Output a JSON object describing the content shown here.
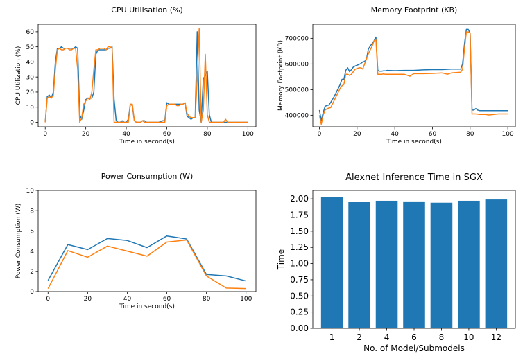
{
  "chart_data": [
    {
      "type": "line",
      "title": "CPU Utilisation (%)",
      "xlabel": "Time in second(s)",
      "ylabel": "CPU Utilization (%)",
      "xlim": [
        -3.5,
        104
      ],
      "ylim": [
        -3,
        65
      ],
      "xticks": [
        0,
        20,
        40,
        60,
        80,
        100
      ],
      "yticks": [
        0,
        10,
        20,
        30,
        40,
        50,
        60
      ],
      "series": [
        {
          "color": "#1f77b4",
          "x": [
            0,
            1,
            2,
            3,
            4,
            5,
            6,
            7,
            8,
            9,
            10,
            11,
            12,
            13,
            14,
            15,
            16,
            17,
            18,
            19,
            20,
            21,
            22,
            23,
            24,
            25,
            26,
            27,
            28,
            29,
            30,
            31,
            32,
            33,
            34,
            35,
            36,
            37,
            38,
            39,
            40,
            41,
            42,
            43,
            44,
            45,
            46,
            47,
            48,
            49,
            50,
            52,
            54,
            56,
            58,
            59,
            60,
            61,
            62,
            63,
            64,
            65,
            66,
            67,
            68,
            69,
            70,
            71,
            72,
            73,
            74,
            75,
            76,
            77,
            78,
            79,
            80,
            81,
            82,
            84,
            86,
            88,
            90,
            92,
            94,
            96,
            98,
            100
          ],
          "y": [
            0,
            17,
            18,
            16,
            20,
            40,
            49,
            49,
            50,
            49,
            49,
            49,
            49,
            49,
            49,
            50,
            49,
            5,
            2,
            8,
            15,
            16,
            16,
            16,
            20,
            45,
            48,
            48,
            48,
            48,
            48,
            49,
            49,
            50,
            15,
            1,
            0,
            0,
            1,
            0,
            0,
            2,
            12,
            11,
            1,
            0,
            0,
            0,
            1,
            1,
            0,
            0,
            0,
            0,
            1,
            1,
            13,
            12,
            12,
            12,
            12,
            12,
            12,
            12,
            12,
            13,
            4,
            3,
            2,
            3,
            3,
            60,
            8,
            0,
            29,
            31,
            34,
            5,
            0,
            0,
            0,
            0,
            0,
            0,
            0,
            0,
            0,
            0
          ]
        },
        {
          "color": "#ff7f0e",
          "x": [
            0,
            1,
            2,
            3,
            4,
            5,
            6,
            7,
            8,
            9,
            10,
            11,
            12,
            13,
            14,
            15,
            16,
            17,
            18,
            19,
            20,
            21,
            22,
            23,
            24,
            25,
            26,
            27,
            28,
            29,
            30,
            31,
            32,
            33,
            34,
            35,
            36,
            37,
            38,
            39,
            40,
            41,
            42,
            43,
            44,
            45,
            46,
            47,
            48,
            49,
            50,
            52,
            54,
            56,
            58,
            59,
            60,
            61,
            62,
            63,
            64,
            65,
            66,
            67,
            68,
            69,
            70,
            71,
            72,
            73,
            74,
            75,
            76,
            77,
            78,
            79,
            80,
            81,
            82,
            84,
            86,
            88,
            89,
            90,
            92,
            94,
            96,
            98,
            100
          ],
          "y": [
            0,
            16,
            17,
            16,
            18,
            35,
            48,
            49,
            48,
            48,
            49,
            49,
            48,
            48,
            49,
            49,
            35,
            0,
            3,
            12,
            14,
            16,
            15,
            20,
            35,
            48,
            48,
            49,
            49,
            49,
            48,
            50,
            50,
            49,
            0,
            0,
            0,
            0,
            0,
            0,
            0,
            0,
            12,
            12,
            1,
            0,
            0,
            0,
            1,
            0,
            0,
            0,
            0,
            0,
            0,
            0,
            11,
            12,
            12,
            12,
            12,
            11,
            11,
            12,
            12,
            13,
            6,
            4,
            3,
            3,
            3,
            28,
            62,
            0,
            8,
            45,
            5,
            0,
            0,
            0,
            0,
            0,
            2,
            0,
            0,
            0,
            0,
            0,
            0
          ]
        }
      ]
    },
    {
      "type": "line",
      "title": "Memory Footprint (KB)",
      "xlabel": "Time in second(s)",
      "ylabel": "Memory Footprint (KB)",
      "xlim": [
        -3.5,
        104
      ],
      "ylim": [
        355000,
        755000
      ],
      "xticks": [
        0,
        20,
        40,
        60,
        80,
        100
      ],
      "yticks": [
        400000,
        500000,
        600000,
        700000
      ],
      "series": [
        {
          "color": "#1f77b4",
          "x": [
            0,
            1,
            2,
            3,
            4,
            5,
            6,
            7,
            8,
            9,
            10,
            11,
            12,
            13,
            14,
            15,
            16,
            17,
            18,
            19,
            20,
            21,
            22,
            23,
            24,
            25,
            26,
            27,
            28,
            29,
            30,
            31,
            32,
            33,
            34,
            35,
            36,
            40,
            45,
            50,
            55,
            60,
            65,
            70,
            75,
            76,
            77,
            78,
            79,
            80,
            81,
            82,
            83,
            84,
            85,
            86,
            88,
            90,
            95,
            100
          ],
          "y": [
            420000,
            380000,
            410000,
            435000,
            438000,
            440000,
            450000,
            462000,
            475000,
            490000,
            505000,
            520000,
            540000,
            540000,
            575000,
            585000,
            570000,
            578000,
            588000,
            592000,
            595000,
            598000,
            602000,
            608000,
            610000,
            620000,
            658000,
            670000,
            680000,
            690000,
            705000,
            575000,
            572000,
            572000,
            573000,
            573000,
            575000,
            574000,
            575000,
            575000,
            577000,
            578000,
            578000,
            580000,
            580000,
            600000,
            680000,
            735000,
            735000,
            720000,
            420000,
            420000,
            426000,
            420000,
            418000,
            418000,
            418000,
            418000,
            418000,
            418000
          ],
          "x_order_note": ""
        },
        {
          "color": "#ff7f0e",
          "x": [
            0,
            1,
            2,
            3,
            4,
            5,
            6,
            7,
            8,
            9,
            10,
            11,
            12,
            13,
            14,
            15,
            16,
            17,
            18,
            19,
            20,
            21,
            22,
            23,
            24,
            25,
            26,
            27,
            28,
            29,
            30,
            31,
            32,
            33,
            34,
            35,
            36,
            40,
            45,
            48,
            50,
            55,
            60,
            65,
            68,
            70,
            75,
            76,
            77,
            78,
            79,
            80,
            81,
            82,
            83,
            84,
            85,
            86,
            88,
            90,
            95,
            100
          ],
          "y": [
            400000,
            365000,
            400000,
            420000,
            425000,
            428000,
            430000,
            445000,
            460000,
            475000,
            490000,
            505000,
            515000,
            520000,
            560000,
            560000,
            555000,
            560000,
            570000,
            580000,
            582000,
            585000,
            585000,
            580000,
            600000,
            620000,
            640000,
            655000,
            670000,
            690000,
            695000,
            560000,
            560000,
            560000,
            561000,
            560000,
            560000,
            560000,
            560000,
            552000,
            562000,
            562000,
            563000,
            565000,
            560000,
            565000,
            568000,
            580000,
            660000,
            725000,
            725000,
            720000,
            405000,
            405000,
            405000,
            404000,
            403000,
            403000,
            403000,
            401000,
            405000,
            405000
          ]
        }
      ]
    },
    {
      "type": "line",
      "title": "Power Consumption (W)",
      "xlabel": "Time in second(s)",
      "ylabel": "Power Consumption (W)",
      "xlim": [
        -5,
        105
      ],
      "ylim": [
        0,
        10
      ],
      "xticks": [
        0,
        20,
        40,
        60,
        80,
        100
      ],
      "yticks": [
        0,
        2,
        4,
        6,
        8,
        10
      ],
      "series": [
        {
          "color": "#1f77b4",
          "x": [
            0,
            10,
            20,
            30,
            40,
            50,
            60,
            70,
            80,
            90,
            100
          ],
          "y": [
            1.1,
            4.65,
            4.15,
            5.25,
            5.05,
            4.35,
            5.5,
            5.2,
            1.7,
            1.55,
            1.05
          ]
        },
        {
          "color": "#ff7f0e",
          "x": [
            0,
            10,
            20,
            30,
            40,
            50,
            60,
            70,
            80,
            90,
            100
          ],
          "y": [
            0.3,
            4.05,
            3.4,
            4.5,
            4.0,
            3.5,
            4.9,
            5.1,
            1.55,
            0.35,
            0.3
          ]
        }
      ]
    },
    {
      "type": "bar",
      "title": "Alexnet Inference Time in SGX",
      "xlabel": "No. of Model/Submodels",
      "ylabel": "Time",
      "ylim": [
        0,
        2.13
      ],
      "yticks": [
        "0.00",
        "0.25",
        "0.50",
        "0.75",
        "1.00",
        "1.25",
        "1.50",
        "1.75",
        "2.00"
      ],
      "color": "#1f77b4",
      "categories": [
        "1",
        "2",
        "4",
        "6",
        "8",
        "10",
        "12"
      ],
      "values": [
        2.03,
        1.95,
        1.97,
        1.96,
        1.94,
        1.97,
        1.99
      ]
    }
  ]
}
